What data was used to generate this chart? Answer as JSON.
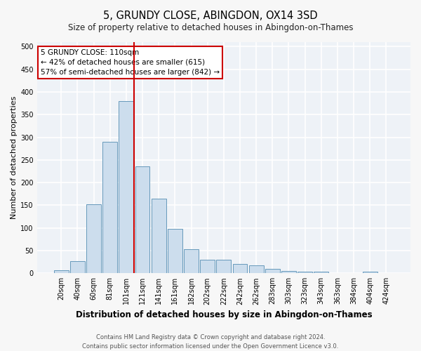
{
  "title": "5, GRUNDY CLOSE, ABINGDON, OX14 3SD",
  "subtitle": "Size of property relative to detached houses in Abingdon-on-Thames",
  "xlabel": "Distribution of detached houses by size in Abingdon-on-Thames",
  "ylabel": "Number of detached properties",
  "bar_labels": [
    "20sqm",
    "40sqm",
    "60sqm",
    "81sqm",
    "101sqm",
    "121sqm",
    "141sqm",
    "161sqm",
    "182sqm",
    "202sqm",
    "222sqm",
    "242sqm",
    "262sqm",
    "283sqm",
    "303sqm",
    "323sqm",
    "343sqm",
    "363sqm",
    "384sqm",
    "404sqm",
    "424sqm"
  ],
  "bar_values": [
    6,
    27,
    153,
    290,
    380,
    236,
    165,
    98,
    53,
    30,
    30,
    21,
    18,
    10,
    5,
    3,
    3,
    0,
    0,
    3,
    0
  ],
  "bar_color": "#ccdded",
  "bar_edge_color": "#6699bb",
  "background_color": "#eef2f7",
  "grid_color": "#ffffff",
  "vline_x": 4.5,
  "vline_color": "#cc0000",
  "annotation_text": "5 GRUNDY CLOSE: 110sqm\n← 42% of detached houses are smaller (615)\n57% of semi-detached houses are larger (842) →",
  "annotation_box_color": "#ffffff",
  "annotation_box_edge": "#cc0000",
  "ylim": [
    0,
    510
  ],
  "yticks": [
    0,
    50,
    100,
    150,
    200,
    250,
    300,
    350,
    400,
    450,
    500
  ],
  "footer": "Contains HM Land Registry data © Crown copyright and database right 2024.\nContains public sector information licensed under the Open Government Licence v3.0.",
  "title_fontsize": 10.5,
  "subtitle_fontsize": 8.5,
  "xlabel_fontsize": 8.5,
  "ylabel_fontsize": 8,
  "tick_fontsize": 7,
  "footer_fontsize": 6,
  "annotation_fontsize": 7.5
}
